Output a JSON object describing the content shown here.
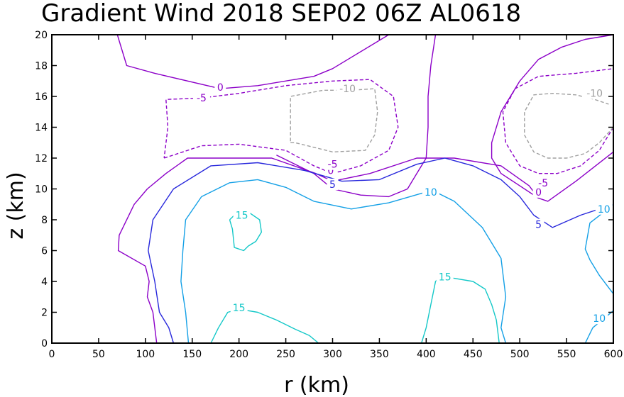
{
  "chart_data": {
    "type": "contour",
    "title": "Gradient Wind 2018 SEP02 06Z  AL0618",
    "xlabel": "r (km)",
    "ylabel": "z (km)",
    "xlim": [
      0,
      600
    ],
    "ylim": [
      0,
      20
    ],
    "xticks": [
      0,
      50,
      100,
      150,
      200,
      250,
      300,
      350,
      400,
      450,
      500,
      550,
      600
    ],
    "yticks": [
      0,
      2,
      4,
      6,
      8,
      10,
      12,
      14,
      16,
      18,
      20
    ],
    "grid": false,
    "levels": [
      {
        "value": -10,
        "label": "-10",
        "color": "#a0a0a0",
        "dashed": true
      },
      {
        "value": -5,
        "label": "-5",
        "color": "#8c00c8",
        "dashed": true
      },
      {
        "value": 0,
        "label": "0",
        "color": "#8c00c8",
        "dashed": false
      },
      {
        "value": 5,
        "label": "5",
        "color": "#2828dc",
        "dashed": false
      },
      {
        "value": 10,
        "label": "10",
        "color": "#14a0e6",
        "dashed": false
      },
      {
        "value": 15,
        "label": "15",
        "color": "#14c8c8",
        "dashed": false
      }
    ],
    "contours": [
      {
        "level": 0,
        "points": [
          [
            112,
            0
          ],
          [
            108,
            2
          ],
          [
            102,
            3
          ],
          [
            104,
            4
          ],
          [
            100,
            5
          ],
          [
            71,
            6
          ],
          [
            72,
            7
          ],
          [
            88,
            9
          ],
          [
            102,
            10
          ],
          [
            122,
            11
          ],
          [
            145,
            12
          ],
          [
            190,
            12
          ],
          [
            235,
            12
          ],
          [
            282,
            11
          ],
          [
            300,
            10.5
          ],
          [
            340,
            11
          ],
          [
            390,
            12
          ],
          [
            430,
            12
          ],
          [
            480,
            11.5
          ],
          [
            510,
            10.2
          ],
          [
            520,
            9.4
          ],
          [
            530,
            9.2
          ],
          [
            560,
            10.5
          ],
          [
            600,
            12.4
          ]
        ],
        "labels": [
          {
            "x": 298,
            "y": 11.2,
            "text": "0"
          },
          {
            "x": 520,
            "y": 9.8,
            "text": "0"
          }
        ]
      },
      {
        "level": 0,
        "points": [
          [
            70,
            20
          ],
          [
            80,
            18
          ],
          [
            110,
            17.5
          ],
          [
            180,
            16.5
          ],
          [
            220,
            16.7
          ],
          [
            280,
            17.3
          ],
          [
            300,
            17.8
          ],
          [
            360,
            20
          ]
        ],
        "labels": [
          {
            "x": 180,
            "y": 16.6,
            "text": "0"
          }
        ]
      },
      {
        "level": 0,
        "points": [
          [
            410,
            20
          ],
          [
            405,
            18
          ],
          [
            402,
            16
          ],
          [
            402,
            14
          ],
          [
            400,
            12
          ],
          [
            390,
            11
          ],
          [
            380,
            10
          ],
          [
            360,
            9.5
          ],
          [
            330,
            9.6
          ],
          [
            300,
            10
          ],
          [
            280,
            11
          ],
          [
            240,
            12.2
          ]
        ]
      },
      {
        "level": 0,
        "points": [
          [
            600,
            20
          ],
          [
            570,
            19.7
          ],
          [
            545,
            19.2
          ],
          [
            520,
            18.4
          ],
          [
            500,
            17
          ],
          [
            480,
            15
          ],
          [
            470,
            13
          ],
          [
            470,
            12
          ],
          [
            480,
            11
          ],
          [
            500,
            10.2
          ],
          [
            520,
            9.4
          ]
        ]
      },
      {
        "level": -5,
        "points": [
          [
            120,
            12
          ],
          [
            140,
            12.4
          ],
          [
            160,
            12.8
          ],
          [
            200,
            12.9
          ],
          [
            250,
            12.5
          ],
          [
            280,
            11.5
          ],
          [
            300,
            11
          ],
          [
            330,
            11.5
          ],
          [
            360,
            12.5
          ],
          [
            370,
            14
          ],
          [
            365,
            16
          ],
          [
            340,
            17.1
          ],
          [
            300,
            17
          ],
          [
            250,
            16.7
          ],
          [
            200,
            16.2
          ],
          [
            160,
            15.9
          ],
          [
            122,
            15.8
          ],
          [
            124,
            14
          ],
          [
            120,
            12
          ]
        ],
        "labels": [
          {
            "x": 160,
            "y": 15.9,
            "text": "-5"
          },
          {
            "x": 300,
            "y": 11.6,
            "text": "-5"
          }
        ]
      },
      {
        "level": -5,
        "points": [
          [
            600,
            14
          ],
          [
            585,
            12.5
          ],
          [
            565,
            11.5
          ],
          [
            540,
            11
          ],
          [
            520,
            11
          ],
          [
            500,
            11.5
          ],
          [
            485,
            13
          ],
          [
            482,
            15
          ],
          [
            495,
            16.5
          ],
          [
            520,
            17.3
          ],
          [
            560,
            17.5
          ],
          [
            600,
            17.8
          ]
        ],
        "labels": [
          {
            "x": 525,
            "y": 10.4,
            "text": "-5"
          }
        ]
      },
      {
        "level": -10,
        "points": [
          [
            255,
            13
          ],
          [
            260,
            13
          ],
          [
            300,
            12.4
          ],
          [
            335,
            12.5
          ],
          [
            345,
            13.5
          ],
          [
            348,
            15
          ],
          [
            345,
            16.5
          ],
          [
            320,
            16.4
          ],
          [
            290,
            16.4
          ],
          [
            255,
            16
          ],
          [
            255,
            13
          ]
        ],
        "labels": [
          {
            "x": 316,
            "y": 16.5,
            "text": "-10"
          }
        ]
      },
      {
        "level": -10,
        "points": [
          [
            600,
            14
          ],
          [
            585,
            13
          ],
          [
            570,
            12.3
          ],
          [
            550,
            12
          ],
          [
            530,
            12
          ],
          [
            515,
            12.4
          ],
          [
            505,
            13.5
          ],
          [
            505,
            15
          ],
          [
            515,
            16.1
          ],
          [
            535,
            16.2
          ],
          [
            560,
            16.1
          ],
          [
            580,
            15.8
          ],
          [
            595,
            15.5
          ]
        ],
        "labels": [
          {
            "x": 580,
            "y": 16.2,
            "text": "-10"
          }
        ]
      },
      {
        "level": 5,
        "points": [
          [
            130,
            0
          ],
          [
            125,
            1
          ],
          [
            115,
            2
          ],
          [
            110,
            4
          ],
          [
            103,
            6
          ],
          [
            108,
            8
          ],
          [
            130,
            10
          ],
          [
            170,
            11.5
          ],
          [
            220,
            11.7
          ],
          [
            270,
            11.2
          ],
          [
            310,
            10.5
          ],
          [
            350,
            10.6
          ],
          [
            390,
            11.6
          ],
          [
            420,
            12
          ],
          [
            450,
            11.5
          ],
          [
            480,
            10.6
          ],
          [
            500,
            9.5
          ],
          [
            515,
            8.3
          ],
          [
            535,
            7.5
          ],
          [
            565,
            8.3
          ],
          [
            600,
            9
          ]
        ],
        "labels": [
          {
            "x": 300,
            "y": 10.3,
            "text": "5"
          },
          {
            "x": 520,
            "y": 7.7,
            "text": "5"
          }
        ]
      },
      {
        "level": 10,
        "points": [
          [
            146,
            0
          ],
          [
            143,
            2
          ],
          [
            138,
            4
          ],
          [
            140,
            6
          ],
          [
            143,
            8
          ],
          [
            160,
            9.5
          ],
          [
            190,
            10.4
          ],
          [
            220,
            10.6
          ],
          [
            250,
            10.1
          ],
          [
            280,
            9.2
          ],
          [
            320,
            8.7
          ],
          [
            360,
            9.1
          ],
          [
            400,
            9.8
          ],
          [
            410,
            9.8
          ],
          [
            430,
            9.2
          ],
          [
            460,
            7.5
          ],
          [
            480,
            5.5
          ],
          [
            485,
            3
          ],
          [
            480,
            1
          ],
          [
            485,
            0
          ]
        ],
        "labels": [
          {
            "x": 405,
            "y": 9.8,
            "text": "10"
          }
        ]
      },
      {
        "level": 10,
        "points": [
          [
            600,
            3.2
          ],
          [
            585,
            4.4
          ],
          [
            575,
            5.4
          ],
          [
            570,
            6.1
          ],
          [
            575,
            7.8
          ],
          [
            590,
            8.5
          ],
          [
            600,
            9
          ]
        ],
        "labels": [
          {
            "x": 590,
            "y": 8.7,
            "text": "10"
          }
        ]
      },
      {
        "level": 10,
        "points": [
          [
            570,
            0
          ],
          [
            578,
            1
          ],
          [
            590,
            1.6
          ],
          [
            600,
            2.1
          ]
        ],
        "labels": [
          {
            "x": 585,
            "y": 1.6,
            "text": "10"
          }
        ]
      },
      {
        "level": 15,
        "points": [
          [
            190,
            8.0
          ],
          [
            195,
            8.3
          ],
          [
            210,
            8.5
          ],
          [
            222,
            8
          ],
          [
            224,
            7.2
          ],
          [
            218,
            6.6
          ],
          [
            210,
            6.3
          ],
          [
            205,
            6
          ],
          [
            195,
            6.2
          ],
          [
            193,
            7.4
          ],
          [
            190,
            8.0
          ]
        ],
        "labels": [
          {
            "x": 203,
            "y": 8.3,
            "text": "15"
          }
        ]
      },
      {
        "level": 15,
        "points": [
          [
            170,
            0
          ],
          [
            178,
            1
          ],
          [
            188,
            2
          ],
          [
            200,
            2.2
          ],
          [
            220,
            2.0
          ],
          [
            240,
            1.5
          ],
          [
            260,
            0.9
          ],
          [
            275,
            0.5
          ],
          [
            285,
            0
          ]
        ],
        "labels": [
          {
            "x": 200,
            "y": 2.3,
            "text": "15"
          }
        ]
      },
      {
        "level": 15,
        "points": [
          [
            395,
            0
          ],
          [
            400,
            1
          ],
          [
            405,
            2.5
          ],
          [
            410,
            4
          ],
          [
            415,
            4.3
          ],
          [
            430,
            4.2
          ],
          [
            450,
            4
          ],
          [
            463,
            3.5
          ],
          [
            470,
            2.5
          ],
          [
            475,
            1.5
          ],
          [
            478,
            0
          ]
        ],
        "labels": [
          {
            "x": 420,
            "y": 4.3,
            "text": "15"
          }
        ]
      }
    ]
  }
}
